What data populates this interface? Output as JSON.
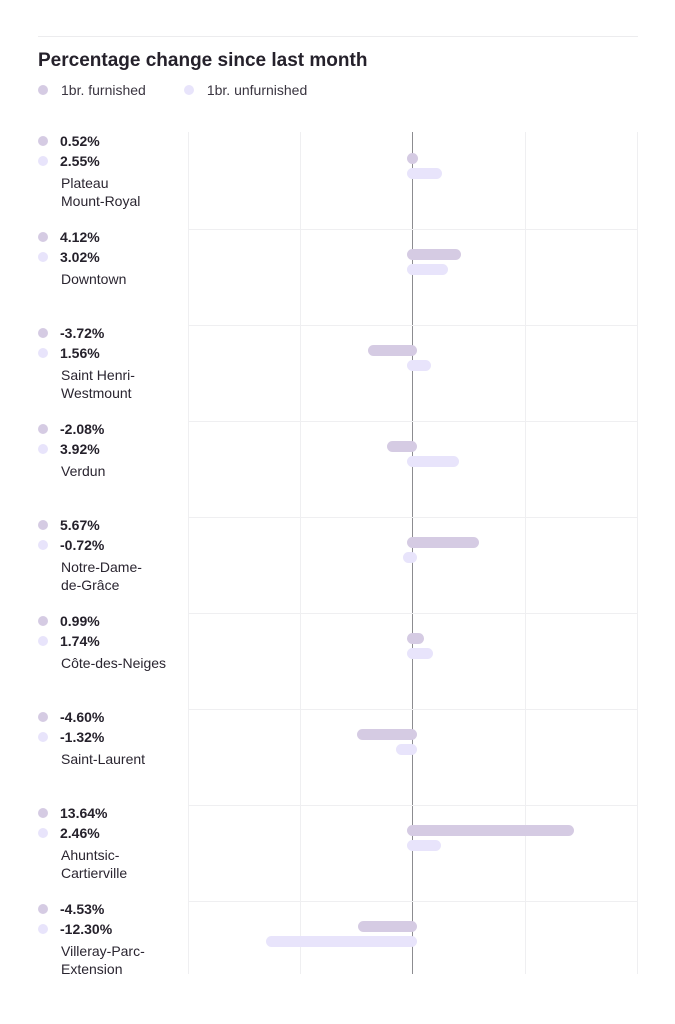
{
  "chart_data": {
    "type": "bar",
    "orientation": "horizontal",
    "title": "Percentage change since last month",
    "series": [
      {
        "name": "1br. furnished",
        "color": "#d5cbe3",
        "values": [
          0.52,
          4.12,
          -3.72,
          -2.08,
          5.67,
          0.99,
          -4.6,
          13.64,
          -4.53
        ],
        "labels": [
          "0.52%",
          "4.12%",
          "-3.72%",
          "-2.08%",
          "5.67%",
          "0.99%",
          "-4.60%",
          "13.64%",
          "-4.53%"
        ]
      },
      {
        "name": "1br. unfurnished",
        "color": "#e8e4fb",
        "values": [
          2.55,
          3.02,
          1.56,
          3.92,
          -0.72,
          1.74,
          -1.32,
          2.46,
          -12.3
        ],
        "labels": [
          "2.55%",
          "3.02%",
          "1.56%",
          "3.92%",
          "-0.72%",
          "1.74%",
          "-1.32%",
          "2.46%",
          "-12.30%"
        ]
      }
    ],
    "categories": [
      "Plateau\nMount-Royal",
      "Downtown",
      "Saint Henri-\nWestmount",
      "Verdun",
      "Notre-Dame-\nde-Grâce",
      "Côte-des-Neiges",
      "Saint-Laurent",
      "Ahuntsic-\nCartierville",
      "Villeray-Parc-\nExtension"
    ],
    "xlim": [
      -20,
      20
    ],
    "grid": true,
    "legend_position": "top-left"
  }
}
